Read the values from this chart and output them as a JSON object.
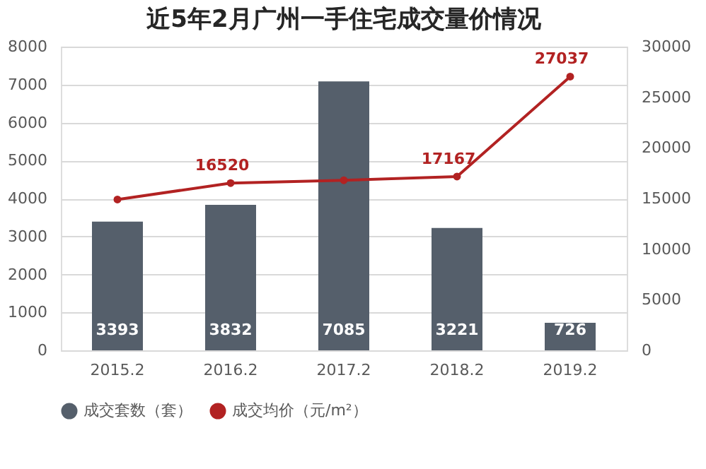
{
  "chart_data": {
    "type": "bar",
    "title": "近5年2月广州一手住宅成交量价情况",
    "categories": [
      "2015.2",
      "2016.2",
      "2017.2",
      "2018.2",
      "2019.2"
    ],
    "series": [
      {
        "name": "成交套数（套）",
        "color": "#555f6b",
        "values": [
          3393,
          3832,
          7085,
          3221,
          726
        ],
        "data_labels": true
      },
      {
        "name": "成交均价（元/m²）",
        "type": "line",
        "axis": "y2",
        "color": "#b22222",
        "values": [
          14900,
          16520,
          16800,
          17167,
          27037
        ],
        "value_labels": [
          null,
          "16520",
          null,
          "17167",
          "27037"
        ]
      }
    ],
    "ylim": [
      0,
      8000
    ],
    "yticks": [
      0,
      1000,
      2000,
      3000,
      4000,
      5000,
      6000,
      7000,
      8000
    ],
    "y2lim": [
      0,
      30000
    ],
    "y2ticks": [
      0,
      5000,
      10000,
      15000,
      20000,
      25000,
      30000
    ],
    "grid": "y",
    "legend": "bottom",
    "marker": "circle"
  }
}
